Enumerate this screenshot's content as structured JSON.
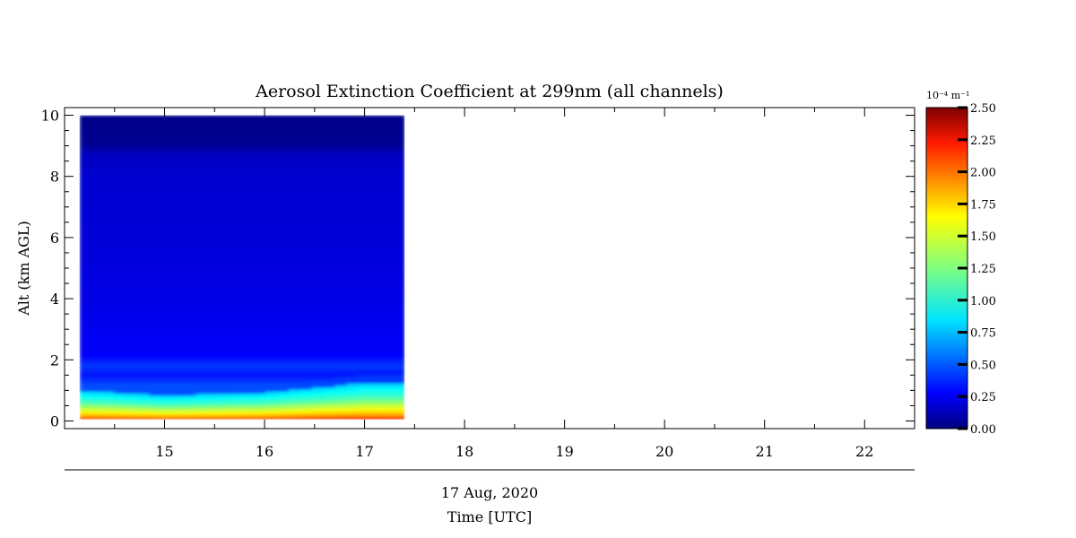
{
  "chart_data": {
    "type": "heatmap",
    "title": "Aerosol Extinction Coefficient at 299nm (all channels)",
    "ylabel": "Alt (km AGL)",
    "xlabel": "Time [UTC]",
    "date_label": "17 Aug, 2020",
    "xlim": [
      14,
      22.5
    ],
    "ylim": [
      -0.25,
      10.25
    ],
    "x_ticks": [
      15,
      16,
      17,
      18,
      19,
      20,
      21,
      22
    ],
    "x_tick_labels": [
      "15",
      "16",
      "17",
      "18",
      "19",
      "20",
      "21",
      "22"
    ],
    "y_ticks": [
      0,
      2,
      4,
      6,
      8,
      10
    ],
    "y_tick_labels": [
      "0",
      "2",
      "4",
      "6",
      "8",
      "10"
    ],
    "data_extent": {
      "time_start": 14.15,
      "time_end": 17.4,
      "alt_min": 0.05,
      "alt_max": 10.0
    },
    "time_samples": [
      14.15,
      14.5,
      15.0,
      15.5,
      16.0,
      16.5,
      17.0,
      17.4
    ],
    "profile_altitudes_km": [
      0.05,
      0.1,
      0.15,
      0.3,
      0.6,
      0.9,
      1.2,
      1.5,
      1.8,
      2.2,
      3.0,
      4.0,
      6.0,
      8.0,
      8.8,
      9.0,
      10.0
    ],
    "profile_extinction": [
      2.2,
      2.0,
      1.8,
      1.55,
      1.1,
      0.85,
      0.5,
      0.35,
      0.45,
      0.3,
      0.28,
      0.25,
      0.22,
      0.2,
      0.15,
      0.05,
      0.02
    ],
    "boundary_layer_top_km": [
      1.0,
      0.95,
      0.85,
      0.9,
      0.95,
      1.1,
      1.25,
      1.25
    ],
    "colorbar": {
      "unit_label": "10⁻⁴ m⁻¹",
      "min": 0.0,
      "max": 2.5,
      "ticks": [
        0.0,
        0.25,
        0.5,
        0.75,
        1.0,
        1.25,
        1.5,
        1.75,
        2.0,
        2.25,
        2.5
      ],
      "tick_labels": [
        "0.00",
        "0.25",
        "0.50",
        "0.75",
        "1.00",
        "1.25",
        "1.50",
        "1.75",
        "2.00",
        "2.25",
        "2.50"
      ],
      "colormap": "jet"
    }
  }
}
